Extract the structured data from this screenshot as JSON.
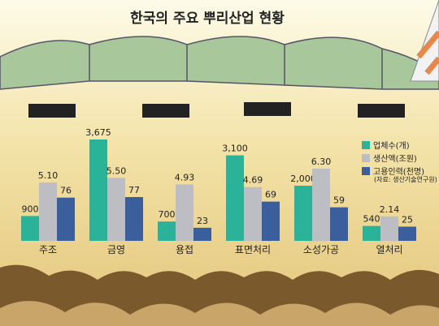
{
  "chart_data": {
    "type": "bar",
    "title": "한국의 주요 뿌리산업 현황",
    "source": "(자료: 생산기술연구원)",
    "categories": [
      "주조",
      "금영",
      "용접",
      "표면처리",
      "소성가공",
      "열처리"
    ],
    "series": [
      {
        "name": "업체수(개)",
        "color": "#2bb39a",
        "values": [
          900,
          3675,
          700,
          3100,
          2000,
          540
        ],
        "value_labels": [
          "900",
          "3,675",
          "700",
          "3,100",
          "2,000",
          "540"
        ]
      },
      {
        "name": "생산액(조원)",
        "color": "#bdbec4",
        "values": [
          5.1,
          5.5,
          4.93,
          4.69,
          6.3,
          2.14
        ],
        "value_labels": [
          "5.10",
          "5.50",
          "4.93",
          "4.69",
          "6.30",
          "2.14"
        ]
      },
      {
        "name": "고용인력(천명)",
        "color": "#3b5e9c",
        "values": [
          76,
          77,
          23,
          69,
          59,
          25
        ],
        "value_labels": [
          "76",
          "77",
          "23",
          "69",
          "59",
          "25"
        ]
      }
    ]
  }
}
